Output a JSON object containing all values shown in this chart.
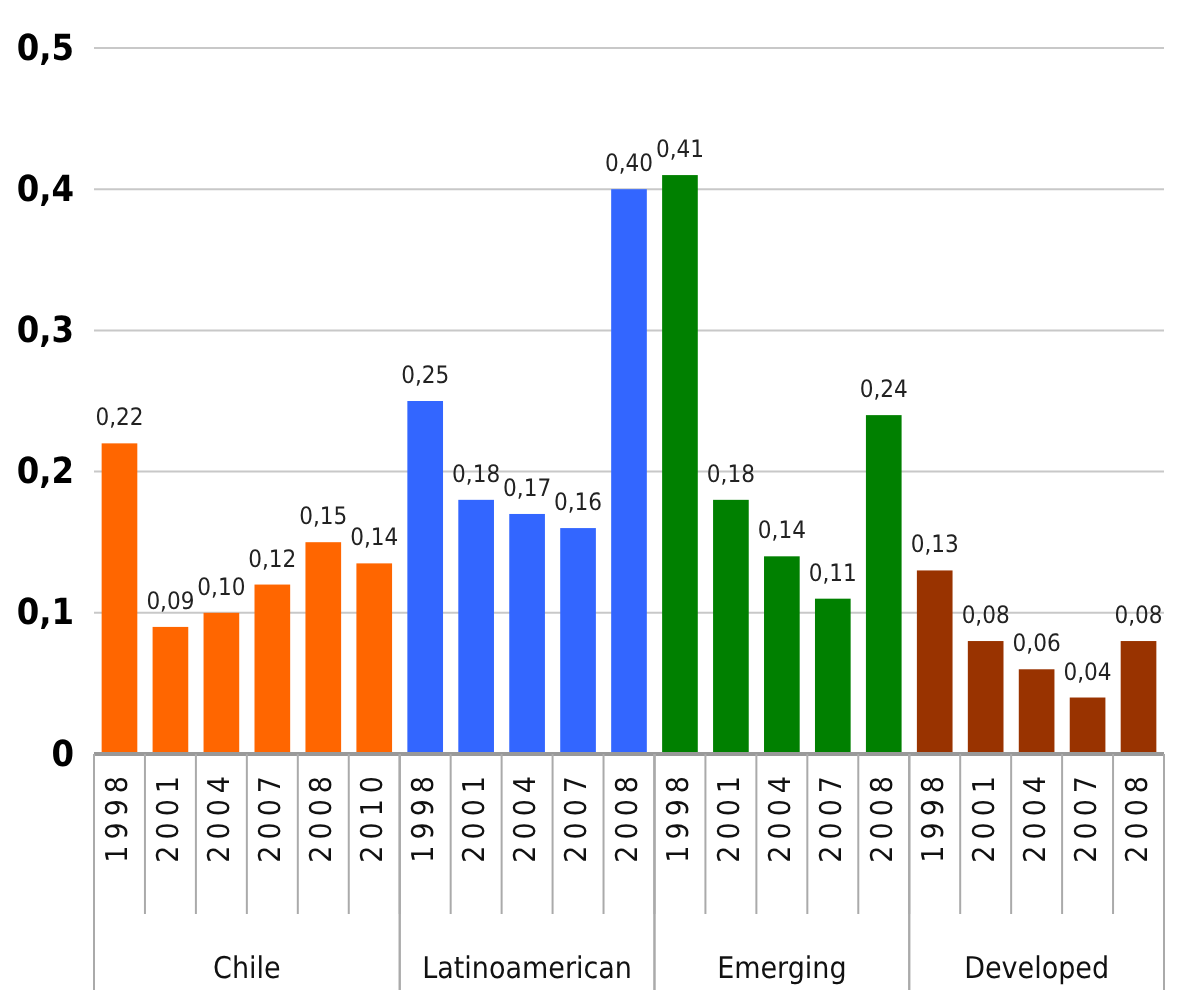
{
  "chart_data": {
    "type": "bar",
    "categories": [
      "1998",
      "2001",
      "2004",
      "2007",
      "2008",
      "2010",
      "1998",
      "2001",
      "2004",
      "2007",
      "2008",
      "1998",
      "2001",
      "2004",
      "2007",
      "2008",
      "1998",
      "2001",
      "2004",
      "2007",
      "2008"
    ],
    "series": [
      {
        "name": "Chile",
        "color": "#ff6600",
        "values": [
          0.22,
          0.09,
          0.1,
          0.12,
          0.15,
          0.135,
          null,
          null,
          null,
          null,
          null,
          null,
          null,
          null,
          null,
          null,
          null,
          null,
          null,
          null,
          null
        ],
        "value_labels": [
          "0,22",
          "0,09",
          "0,10",
          "0,12",
          "0,15",
          "0,14",
          null,
          null,
          null,
          null,
          null,
          null,
          null,
          null,
          null,
          null,
          null,
          null,
          null,
          null,
          null
        ]
      },
      {
        "name": "Latinoamerican",
        "color": "#3366ff",
        "values": [
          null,
          null,
          null,
          null,
          null,
          null,
          0.25,
          0.18,
          0.17,
          0.16,
          0.4,
          null,
          null,
          null,
          null,
          null,
          null,
          null,
          null,
          null,
          null
        ],
        "value_labels": [
          null,
          null,
          null,
          null,
          null,
          null,
          "0,25",
          "0,18",
          "0,17",
          "0,16",
          "0,40",
          null,
          null,
          null,
          null,
          null,
          null,
          null,
          null,
          null,
          null
        ]
      },
      {
        "name": "Emerging",
        "color": "#008000",
        "values": [
          null,
          null,
          null,
          null,
          null,
          null,
          null,
          null,
          null,
          null,
          null,
          0.41,
          0.18,
          0.14,
          0.11,
          0.24,
          null,
          null,
          null,
          null,
          null
        ],
        "value_labels": [
          null,
          null,
          null,
          null,
          null,
          null,
          null,
          null,
          null,
          null,
          null,
          "0,41",
          "0,18",
          "0,14",
          "0,11",
          "0,24",
          null,
          null,
          null,
          null,
          null
        ]
      },
      {
        "name": "Developed",
        "color": "#993300",
        "values": [
          null,
          null,
          null,
          null,
          null,
          null,
          null,
          null,
          null,
          null,
          null,
          null,
          null,
          null,
          null,
          null,
          0.13,
          0.08,
          0.06,
          0.04,
          0.08
        ],
        "value_labels": [
          null,
          null,
          null,
          null,
          null,
          null,
          null,
          null,
          null,
          null,
          null,
          null,
          null,
          null,
          null,
          null,
          "0,13",
          "0,08",
          "0,06",
          "0,04",
          "0,08"
        ]
      }
    ],
    "ylim": [
      0,
      0.5
    ],
    "yticks": [
      {
        "value": 0,
        "label": "0"
      },
      {
        "value": 0.1,
        "label": "0,1"
      },
      {
        "value": 0.2,
        "label": "0,2"
      },
      {
        "value": 0.3,
        "label": "0,3"
      },
      {
        "value": 0.4,
        "label": "0,4"
      },
      {
        "value": 0.5,
        "label": "0,5"
      }
    ],
    "grid": "y",
    "legend": false
  }
}
